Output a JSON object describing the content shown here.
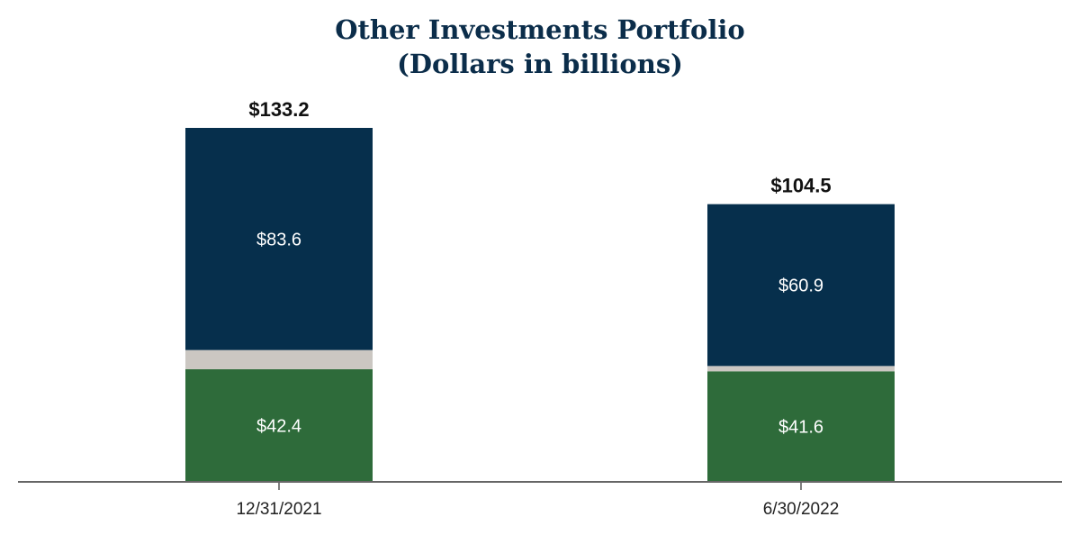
{
  "chart_data": {
    "type": "bar",
    "stacked": true,
    "title": "Other Investments Portfolio",
    "subtitle": "(Dollars in billions)",
    "categories": [
      "12/31/2021",
      "6/30/2022"
    ],
    "series": [
      {
        "values": [
          42.4,
          41.6
        ],
        "labels": [
          "$42.4",
          "$41.6"
        ],
        "color": "#2e6b3a"
      },
      {
        "values": [
          7.2,
          2.0
        ],
        "labels": [
          "",
          ""
        ],
        "color": "#cbc7c2"
      },
      {
        "values": [
          83.6,
          60.9
        ],
        "labels": [
          "$83.6",
          "$60.9"
        ],
        "color": "#062f4c"
      }
    ],
    "totals": [
      133.2,
      104.5
    ],
    "total_labels": [
      "$133.2",
      "$104.5"
    ],
    "ylim": [
      0,
      133.2
    ],
    "grid": false,
    "legend": "none"
  }
}
